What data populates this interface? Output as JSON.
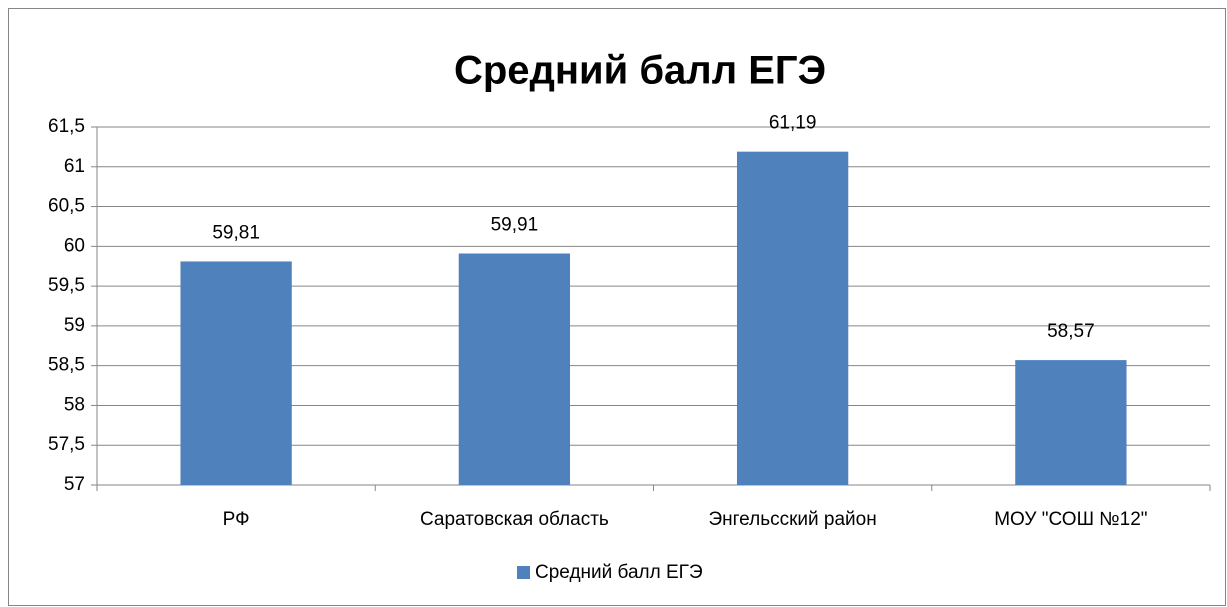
{
  "chart_data": {
    "type": "bar",
    "title": "Средний балл ЕГЭ",
    "categories": [
      "РФ",
      "Саратовская область",
      "Энгельсский район",
      "МОУ \"СОШ №12\""
    ],
    "series": [
      {
        "name": "Средний балл ЕГЭ",
        "color": "#4f81bd",
        "values": [
          59.81,
          59.91,
          61.19,
          58.57
        ],
        "value_labels": [
          "59,81",
          "59,91",
          "61,19",
          "58,57"
        ]
      }
    ],
    "ylim": [
      57,
      61.5
    ],
    "yticks": [
      57,
      {
        "value": 57.5,
        "label": "57,5"
      },
      58,
      {
        "value": 58.5,
        "label": "58,5"
      },
      59,
      {
        "value": 59.5,
        "label": "59,5"
      },
      60,
      {
        "value": 60.5,
        "label": "60,5"
      },
      61,
      {
        "value": 61.5,
        "label": "61,5"
      }
    ],
    "grid": true,
    "legend": "bottom"
  }
}
